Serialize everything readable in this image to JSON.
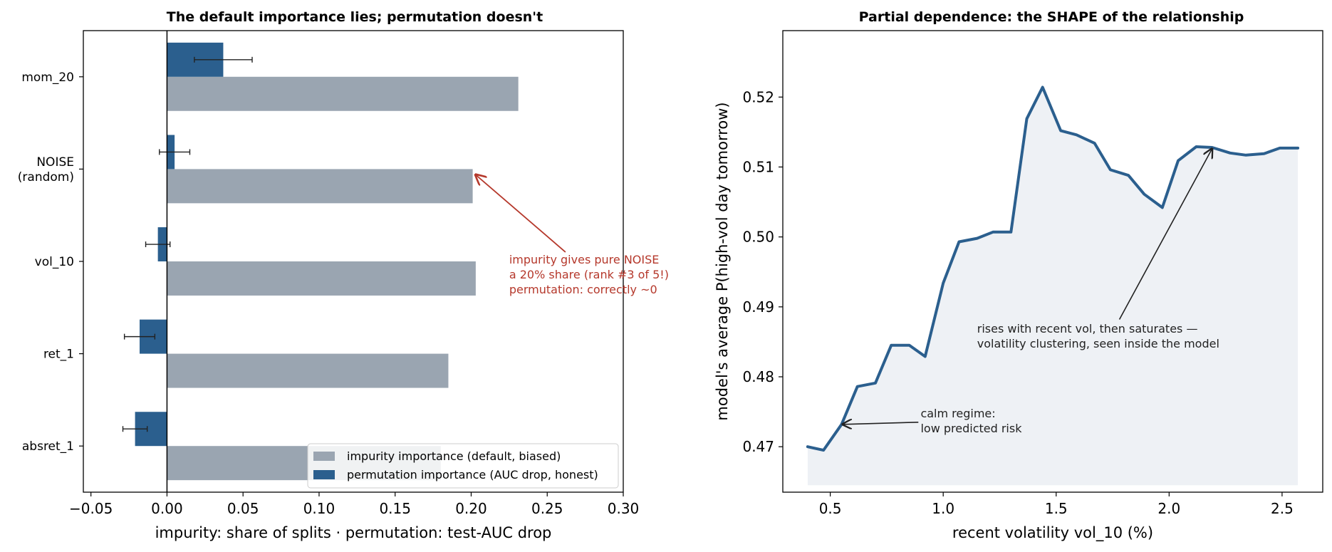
{
  "chart_data": [
    {
      "type": "bar",
      "orientation": "horizontal",
      "title": "The default importance lies; permutation doesn't",
      "xlabel": "impurity: share of splits · permutation: test-AUC drop",
      "ylabel": "",
      "xlim": [
        -0.055,
        0.3
      ],
      "xticks": [
        -0.05,
        0.0,
        0.05,
        0.1,
        0.15,
        0.2,
        0.25,
        0.3
      ],
      "xtick_labels": [
        "−0.05",
        "0.00",
        "0.05",
        "0.10",
        "0.15",
        "0.20",
        "0.25",
        "0.30"
      ],
      "categories": [
        {
          "id": "mom_20",
          "lines": [
            "mom_20"
          ]
        },
        {
          "id": "noise",
          "lines": [
            "NOISE",
            "(random)"
          ]
        },
        {
          "id": "vol_10",
          "lines": [
            "vol_10"
          ]
        },
        {
          "id": "ret_1",
          "lines": [
            "ret_1"
          ]
        },
        {
          "id": "absret_1",
          "lines": [
            "absret_1"
          ]
        }
      ],
      "series": [
        {
          "name": "impurity importance (default, biased)",
          "color": "#9aa5b1",
          "values": [
            0.231,
            0.201,
            0.203,
            0.185,
            0.18
          ]
        },
        {
          "name": "permutation importance (AUC drop, honest)",
          "color": "#2b5f8e",
          "values": [
            0.037,
            0.005,
            -0.006,
            -0.018,
            -0.021
          ],
          "errors": [
            0.019,
            0.01,
            0.008,
            0.01,
            0.008
          ]
        }
      ],
      "legend": "lower-right",
      "annotation": {
        "lines": [
          "impurity gives pure NOISE",
          "a 20% share (rank #3 of 5!)",
          "permutation: correctly ~0"
        ],
        "color": "#b5382b",
        "target": {
          "category": "noise",
          "value": 0.202
        },
        "text_at": {
          "x": 0.225,
          "category_offset": 1.6
        }
      }
    },
    {
      "type": "area",
      "title": "Partial dependence: the SHAPE of the relationship",
      "xlabel": "recent volatility  vol_10  (%)",
      "ylabel": "model's average P(high-vol day tomorrow)",
      "xlim": [
        0.29,
        2.68
      ],
      "ylim": [
        0.4635,
        0.5295
      ],
      "xticks": [
        0.5,
        1.0,
        1.5,
        2.0,
        2.5
      ],
      "xtick_labels": [
        "0.5",
        "1.0",
        "1.5",
        "2.0",
        "2.5"
      ],
      "yticks": [
        0.47,
        0.48,
        0.49,
        0.5,
        0.51,
        0.52
      ],
      "ytick_labels": [
        "0.47",
        "0.48",
        "0.49",
        "0.50",
        "0.51",
        "0.52"
      ],
      "line_color": "#2b5f8e",
      "fill_color": "#eef1f5",
      "fill_base": 0.4645,
      "x": [
        0.4,
        0.47,
        0.55,
        0.62,
        0.7,
        0.77,
        0.85,
        0.92,
        1.0,
        1.07,
        1.15,
        1.22,
        1.3,
        1.37,
        1.44,
        1.52,
        1.59,
        1.67,
        1.74,
        1.82,
        1.89,
        1.97,
        2.04,
        2.12,
        2.19,
        2.27,
        2.34,
        2.42,
        2.49,
        2.57
      ],
      "y": [
        0.47,
        0.4695,
        0.4732,
        0.4786,
        0.4791,
        0.4845,
        0.4845,
        0.4829,
        0.4934,
        0.4993,
        0.4998,
        0.5007,
        0.5007,
        0.5169,
        0.5214,
        0.5152,
        0.5146,
        0.5134,
        0.5096,
        0.5088,
        0.5061,
        0.5042,
        0.5109,
        0.5129,
        0.5128,
        0.512,
        0.5117,
        0.5119,
        0.5127,
        0.5127
      ],
      "annotations": [
        {
          "lines": [
            "rises with recent vol, then saturates —",
            "volatility clustering, seen inside the model"
          ],
          "text_at": {
            "x": 1.15,
            "y": 0.4863
          },
          "arrow_from": {
            "x": 1.78,
            "y": 0.4882
          },
          "target": {
            "x": 2.19,
            "y": 0.5126
          }
        },
        {
          "lines": [
            "calm regime:",
            "low predicted risk"
          ],
          "text_at": {
            "x": 0.9,
            "y": 0.4742
          },
          "arrow_from": {
            "x": 0.89,
            "y": 0.4735
          },
          "target": {
            "x": 0.555,
            "y": 0.4732
          }
        }
      ]
    }
  ]
}
